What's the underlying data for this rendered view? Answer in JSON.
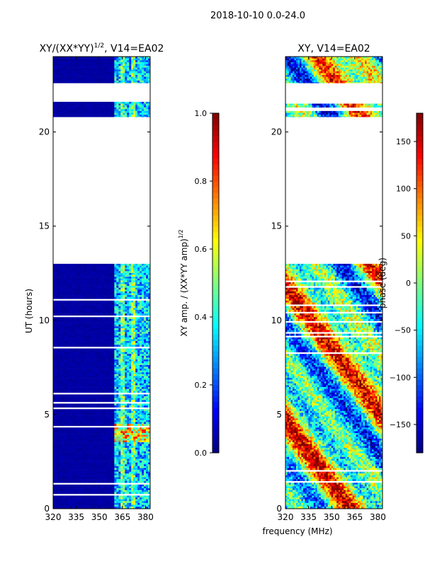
{
  "suptitle": "2018-10-10 0.0-24.0",
  "shared_xlabel": "frequency (MHz)",
  "colors": {
    "jet": [
      "#00007f",
      "#0000ff",
      "#007fff",
      "#00ffff",
      "#7fff7f",
      "#ffff00",
      "#ff7f00",
      "#ff0000",
      "#7f0000"
    ]
  },
  "chart_data": [
    {
      "type": "heatmap",
      "title_main": "XY/(XX*YY)",
      "title_sup": "1/2",
      "title_suffix": ", V14=EA02",
      "ylabel": "UT (hours)",
      "xlabel": "",
      "xlim": [
        320,
        383
      ],
      "ylim": [
        0,
        24
      ],
      "xticks": [
        320,
        335,
        350,
        365,
        380
      ],
      "yticks": [
        0,
        5,
        10,
        15,
        20
      ],
      "bands": [
        [
          0.0,
          13.0
        ],
        [
          20.8,
          21.6
        ],
        [
          22.6,
          24.0
        ]
      ],
      "colorbar": {
        "label_main": "XY amp. / (XX*YY amp)",
        "label_sup": "1/2",
        "range": [
          0.0,
          1.0
        ],
        "ticks": [
          "0.0",
          "0.2",
          "0.4",
          "0.6",
          "0.8",
          "1.0"
        ],
        "tick_values": [
          0.0,
          0.2,
          0.4,
          0.6,
          0.8,
          1.0
        ]
      }
    },
    {
      "type": "heatmap",
      "title_main": "XY, V14=EA02",
      "title_sup": "",
      "title_suffix": "",
      "ylabel": "",
      "xlabel": "frequency (MHz)",
      "xlim": [
        320,
        383
      ],
      "ylim": [
        0,
        24
      ],
      "xticks": [
        320,
        335,
        350,
        365,
        380
      ],
      "yticks": [
        0,
        5,
        10,
        15,
        20
      ],
      "bands": [
        [
          0.0,
          13.0
        ],
        [
          20.8,
          21.6
        ],
        [
          22.6,
          24.0
        ]
      ],
      "colorbar": {
        "label_main": "phase (deg)",
        "label_sup": "",
        "range": [
          -180,
          180
        ],
        "ticks": [
          "−150",
          "−100",
          "−50",
          "0",
          "50",
          "100",
          "150"
        ],
        "tick_values": [
          -150,
          -100,
          -50,
          0,
          50,
          100,
          150
        ]
      }
    }
  ]
}
